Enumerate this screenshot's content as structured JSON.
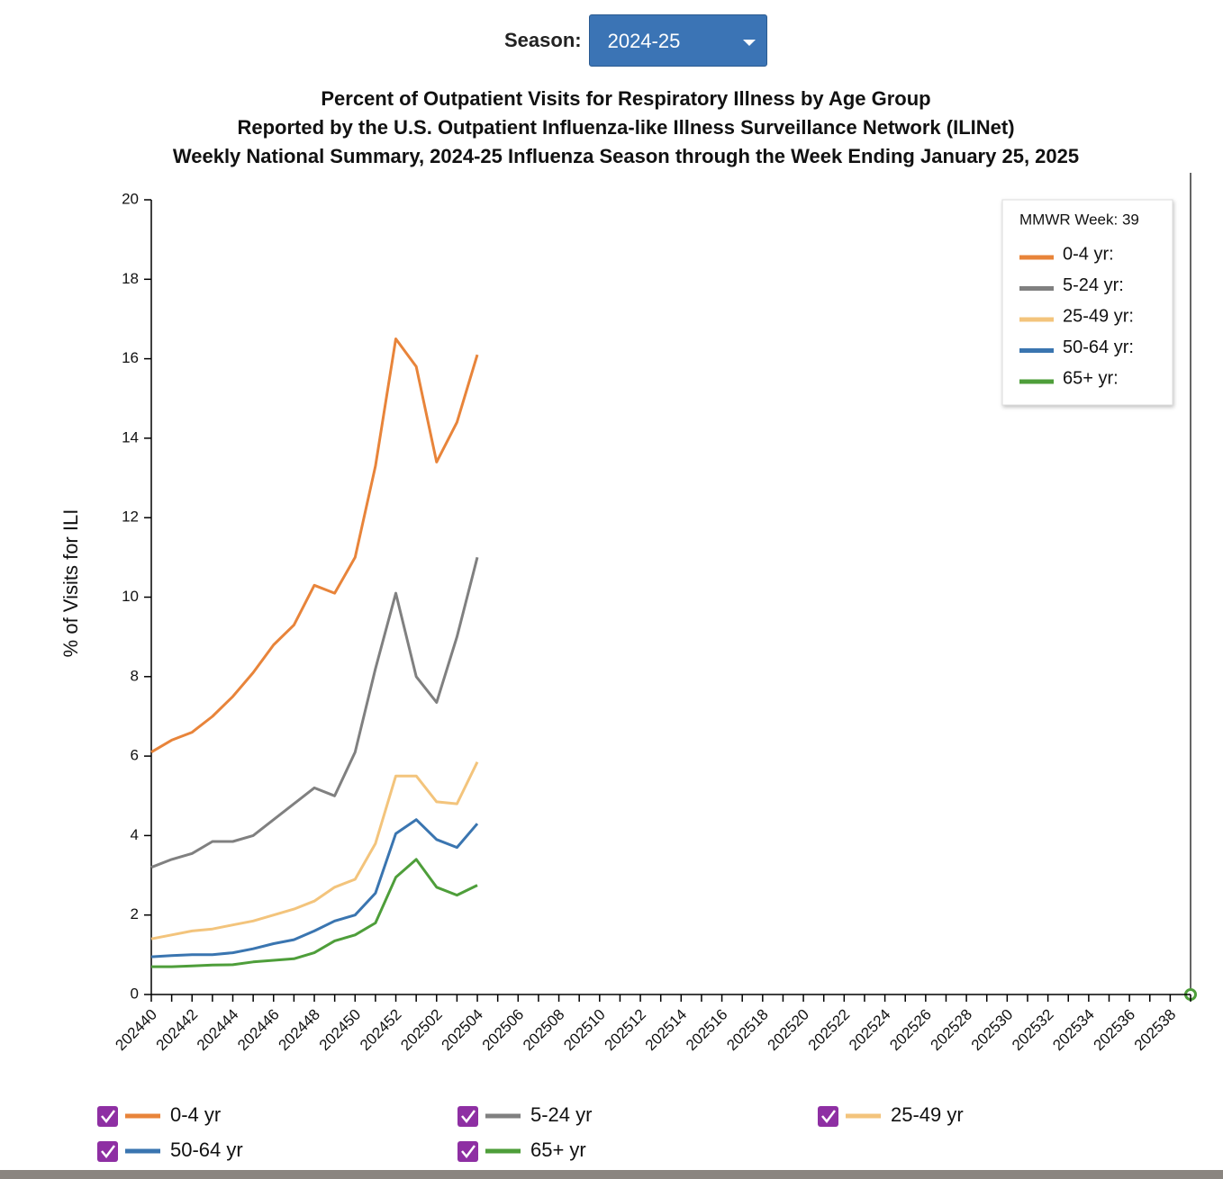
{
  "season_selector": {
    "label": "Season:",
    "selected": "2024-25"
  },
  "chart_data": {
    "type": "line",
    "title": [
      "Percent of Outpatient Visits for Respiratory Illness by Age Group",
      "Reported by the U.S. Outpatient Influenza-like Illness Surveillance Network (ILINet)",
      "Weekly National Summary, 2024-25 Influenza Season through the Week Ending January 25, 2025"
    ],
    "y_label": "% of Visits for ILI",
    "categories": [
      "202440",
      null,
      "202442",
      null,
      "202444",
      null,
      "202446",
      null,
      "202448",
      null,
      "202450",
      null,
      "202452",
      null,
      "202502",
      null,
      "202504",
      null,
      "202506",
      null,
      "202508",
      null,
      "202510",
      null,
      "202512",
      null,
      "202514",
      null,
      "202516",
      null,
      "202518",
      null,
      "202520",
      null,
      "202522",
      null,
      "202524",
      null,
      "202526",
      null,
      "202528",
      null,
      "202530",
      null,
      "202532",
      null,
      "202534",
      null,
      "202536",
      null,
      "202538",
      null
    ],
    "ylim": [
      0,
      20
    ],
    "yticks": [
      0,
      2,
      4,
      6,
      8,
      10,
      12,
      14,
      16,
      18,
      20
    ],
    "series": [
      {
        "name": "0-4 yr",
        "color": "#e8843a",
        "values": [
          6.1,
          6.4,
          6.6,
          7.0,
          7.5,
          8.1,
          8.8,
          9.3,
          10.3,
          10.1,
          11.0,
          13.3,
          16.5,
          15.8,
          13.4,
          14.4,
          16.1,
          null,
          null,
          null,
          null,
          null,
          null,
          null,
          null,
          null,
          null,
          null,
          null,
          null,
          null,
          null,
          null,
          null,
          null,
          null,
          null,
          null,
          null,
          null,
          null,
          null,
          null,
          null,
          null,
          null,
          null,
          null,
          null,
          null,
          null,
          null
        ]
      },
      {
        "name": "5-24 yr",
        "color": "#808080",
        "values": [
          3.2,
          3.4,
          3.55,
          3.85,
          3.85,
          4.0,
          4.4,
          4.8,
          5.2,
          5.0,
          6.1,
          8.2,
          10.1,
          8.0,
          7.35,
          9.0,
          11.0,
          null,
          null,
          null,
          null,
          null,
          null,
          null,
          null,
          null,
          null,
          null,
          null,
          null,
          null,
          null,
          null,
          null,
          null,
          null,
          null,
          null,
          null,
          null,
          null,
          null,
          null,
          null,
          null,
          null,
          null,
          null,
          null,
          null,
          null,
          null
        ]
      },
      {
        "name": "25-49 yr",
        "color": "#f3c47c",
        "values": [
          1.4,
          1.5,
          1.6,
          1.65,
          1.75,
          1.85,
          2.0,
          2.15,
          2.35,
          2.7,
          2.9,
          3.8,
          5.5,
          5.5,
          4.85,
          4.8,
          5.85,
          null,
          null,
          null,
          null,
          null,
          null,
          null,
          null,
          null,
          null,
          null,
          null,
          null,
          null,
          null,
          null,
          null,
          null,
          null,
          null,
          null,
          null,
          null,
          null,
          null,
          null,
          null,
          null,
          null,
          null,
          null,
          null,
          null,
          null,
          null
        ]
      },
      {
        "name": "50-64 yr",
        "color": "#3a75b0",
        "values": [
          0.95,
          0.98,
          1.0,
          1.0,
          1.05,
          1.15,
          1.28,
          1.38,
          1.6,
          1.85,
          2.0,
          2.55,
          4.05,
          4.4,
          3.9,
          3.7,
          4.3,
          null,
          null,
          null,
          null,
          null,
          null,
          null,
          null,
          null,
          null,
          null,
          null,
          null,
          null,
          null,
          null,
          null,
          null,
          null,
          null,
          null,
          null,
          null,
          null,
          null,
          null,
          null,
          null,
          null,
          null,
          null,
          null,
          null,
          null,
          null
        ]
      },
      {
        "name": "65+ yr",
        "color": "#4e9e3a",
        "values": [
          0.7,
          0.7,
          0.72,
          0.74,
          0.75,
          0.82,
          0.86,
          0.9,
          1.05,
          1.35,
          1.5,
          1.8,
          2.95,
          3.4,
          2.7,
          2.5,
          2.75,
          null,
          null,
          null,
          null,
          null,
          null,
          null,
          null,
          null,
          null,
          null,
          null,
          null,
          null,
          null,
          null,
          null,
          null,
          null,
          null,
          null,
          null,
          null,
          null,
          null,
          null,
          null,
          null,
          null,
          null,
          null,
          null,
          null,
          null,
          null
        ]
      }
    ],
    "tooltip": {
      "title": "MMWR Week: 39",
      "labels": [
        "0-4 yr:",
        "5-24 yr:",
        "25-49 yr:",
        "50-64 yr:",
        "65+ yr:"
      ]
    }
  }
}
